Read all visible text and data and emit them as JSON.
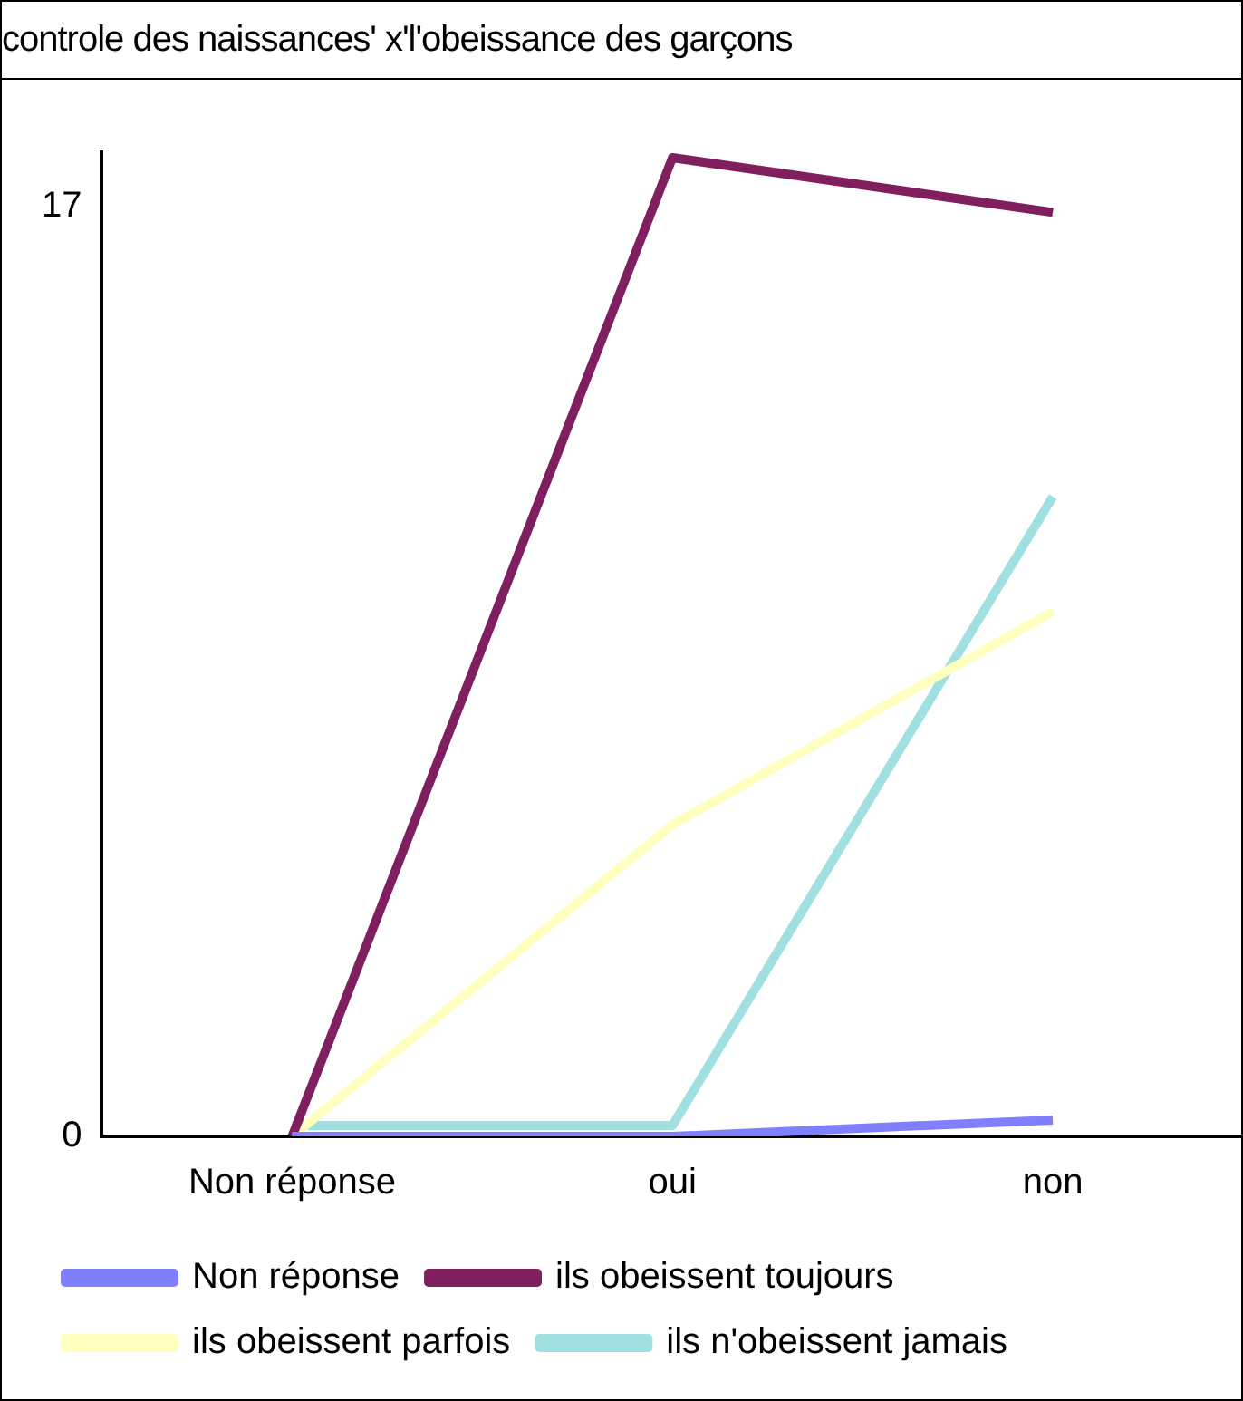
{
  "chart_data": {
    "type": "line",
    "title": "controle des naissances' x'l'obeissance des garçons",
    "categories": [
      "Non réponse",
      "oui",
      "non"
    ],
    "series": [
      {
        "name": "Non réponse",
        "color": "#8080ff",
        "values": [
          0,
          0,
          0.3
        ]
      },
      {
        "name": "ils obeissent toujours",
        "color": "#801f5f",
        "values": [
          0,
          17.9,
          16.9
        ]
      },
      {
        "name": "ils obeissent parfois",
        "color": "#ffffc0",
        "values": [
          0,
          5.7,
          9.6
        ]
      },
      {
        "name": "ils n'obeissent jamais",
        "color": "#a0e0e0",
        "values": [
          0.2,
          0.2,
          11.7
        ]
      }
    ],
    "ylim": [
      0,
      18
    ],
    "yticks": [
      0,
      17
    ],
    "grid": false,
    "legend": "bottom"
  }
}
